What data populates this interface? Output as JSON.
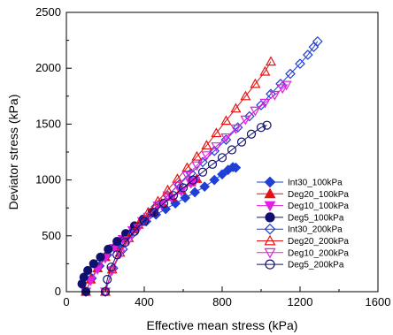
{
  "chart_data": {
    "type": "scatter",
    "xlabel": "Effective mean stress (kPa)",
    "ylabel": "Deviator stress (kPa)",
    "xlim": [
      0,
      1600
    ],
    "ylim": [
      0,
      2500
    ],
    "xticks": [
      "0",
      "400",
      "800",
      "1200",
      "1600"
    ],
    "yticks": [
      "0",
      "500",
      "1000",
      "1500",
      "2000",
      "2500"
    ],
    "grid": false,
    "legend_position": "bottom-right",
    "series": [
      {
        "name": "Int30_100kPa",
        "color": "#1f3fd6",
        "marker": "diamond",
        "filled": true,
        "x": [
          100,
          130,
          170,
          210,
          260,
          310,
          360,
          410,
          460,
          510,
          560,
          610,
          660,
          710,
          760,
          800,
          830,
          855,
          870
        ],
        "y": [
          0,
          120,
          230,
          330,
          420,
          500,
          570,
          630,
          690,
          740,
          790,
          840,
          890,
          940,
          1000,
          1050,
          1090,
          1115,
          1110
        ]
      },
      {
        "name": "Deg20_100kPa",
        "color": "#e81010",
        "marker": "triangle-up",
        "filled": true,
        "x": [
          100,
          125,
          160,
          200,
          245,
          290,
          340,
          390,
          440,
          490,
          540,
          590,
          640,
          670
        ],
        "y": [
          0,
          110,
          210,
          310,
          400,
          480,
          560,
          640,
          720,
          790,
          850,
          910,
          980,
          1010
        ]
      },
      {
        "name": "Deg10_100kPa",
        "color": "#e020e0",
        "marker": "triangle-down",
        "filled": true,
        "x": [
          100,
          125,
          160,
          200,
          245,
          290,
          340,
          390,
          440,
          490,
          540,
          590,
          640,
          660
        ],
        "y": [
          0,
          100,
          200,
          300,
          390,
          470,
          550,
          630,
          710,
          780,
          840,
          900,
          970,
          990
        ]
      },
      {
        "name": "Deg5_100kPa",
        "color": "#101070",
        "marker": "circle",
        "filled": true,
        "x": [
          100,
          80,
          90,
          110,
          140,
          175,
          215,
          260,
          305,
          350,
          395,
          440
        ],
        "y": [
          0,
          70,
          130,
          190,
          250,
          310,
          380,
          450,
          520,
          590,
          650,
          710
        ]
      },
      {
        "name": "Int30_200kPa",
        "color": "#1f3fd6",
        "marker": "diamond",
        "filled": false,
        "x": [
          200,
          240,
          290,
          340,
          400,
          460,
          520,
          580,
          640,
          700,
          760,
          820,
          880,
          940,
          1000,
          1050,
          1100,
          1150,
          1200,
          1240,
          1270,
          1290
        ],
        "y": [
          0,
          210,
          380,
          520,
          650,
          760,
          860,
          960,
          1060,
          1160,
          1260,
          1360,
          1470,
          1570,
          1670,
          1770,
          1860,
          1950,
          2040,
          2120,
          2190,
          2240
        ]
      },
      {
        "name": "Deg20_200kPa",
        "color": "#e81010",
        "marker": "triangle-up",
        "filled": false,
        "x": [
          200,
          235,
          275,
          320,
          370,
          420,
          470,
          520,
          570,
          620,
          670,
          720,
          770,
          820,
          870,
          920,
          970,
          1020,
          1050
        ],
        "y": [
          0,
          200,
          350,
          480,
          600,
          710,
          810,
          910,
          1010,
          1110,
          1210,
          1310,
          1420,
          1530,
          1640,
          1750,
          1860,
          1970,
          2060
        ]
      },
      {
        "name": "Deg10_200kPa",
        "color": "#e020e0",
        "marker": "triangle-down",
        "filled": false,
        "x": [
          200,
          235,
          275,
          320,
          370,
          420,
          470,
          520,
          570,
          620,
          670,
          720,
          770,
          820,
          870,
          920,
          970,
          1020,
          1070,
          1110,
          1130
        ],
        "y": [
          0,
          190,
          340,
          460,
          570,
          670,
          770,
          860,
          950,
          1040,
          1130,
          1220,
          1300,
          1380,
          1460,
          1540,
          1620,
          1690,
          1760,
          1820,
          1850
        ]
      },
      {
        "name": "Deg5_200kPa",
        "color": "#101070",
        "marker": "circle",
        "filled": false,
        "x": [
          200,
          210,
          230,
          260,
          300,
          350,
          400,
          450,
          500,
          550,
          600,
          650,
          700,
          750,
          800,
          850,
          900,
          950,
          1000,
          1030
        ],
        "y": [
          0,
          110,
          220,
          330,
          440,
          540,
          630,
          710,
          790,
          860,
          930,
          1000,
          1070,
          1140,
          1200,
          1270,
          1340,
          1410,
          1470,
          1490
        ]
      }
    ]
  }
}
